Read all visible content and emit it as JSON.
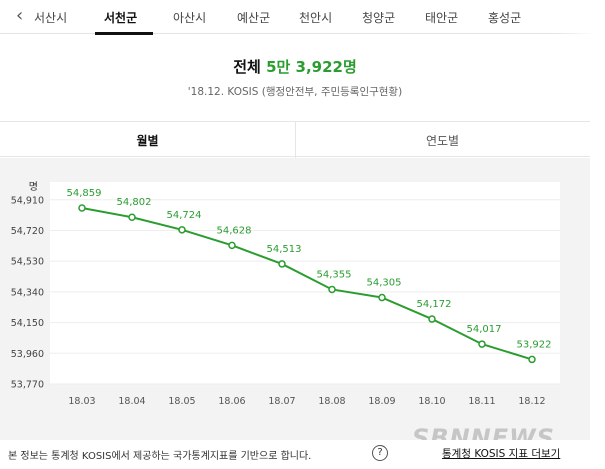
{
  "tabs": [
    {
      "label": "서산시"
    },
    {
      "label": "서천군",
      "active": true
    },
    {
      "label": "아산시"
    },
    {
      "label": "예산군"
    },
    {
      "label": "천안시"
    },
    {
      "label": "청양군"
    },
    {
      "label": "태안군"
    },
    {
      "label": "홍성군"
    }
  ],
  "headline": {
    "label": "전체",
    "value": "5만 3,922명"
  },
  "source": "'18.12. KOSIS (행정안전부, 주민등록인구현황)",
  "segments": {
    "monthly": "월별",
    "yearly": "연도별"
  },
  "colors": {
    "accent": "#2a9d30",
    "chart_bg": "#f3f3f3"
  },
  "chart_data": {
    "type": "line",
    "unit": "명",
    "categories": [
      "18.03",
      "18.04",
      "18.05",
      "18.06",
      "18.07",
      "18.08",
      "18.09",
      "18.10",
      "18.11",
      "18.12"
    ],
    "values": [
      54859,
      54802,
      54724,
      54628,
      54513,
      54355,
      54305,
      54172,
      54017,
      53922
    ],
    "data_labels": [
      "54,859",
      "54,802",
      "54,724",
      "54,628",
      "54,513",
      "54,355",
      "54,305",
      "54,172",
      "54,017",
      "53,922"
    ],
    "yticks": [
      54910,
      54720,
      54530,
      54340,
      54150,
      53960,
      53770
    ],
    "ytick_labels": [
      "54,910",
      "54,720",
      "54,530",
      "54,340",
      "54,150",
      "53,960",
      "53,770"
    ],
    "ylim": [
      53770,
      55020
    ],
    "grid": true
  },
  "footer": {
    "note": "본 정보는 통계청 KOSIS에서 제공하는 국가통계지표를 기반으로 합니다.",
    "help_symbol": "?",
    "link": "통계청 KOSIS 지표 더보기"
  },
  "watermark": "SBNNEWS"
}
